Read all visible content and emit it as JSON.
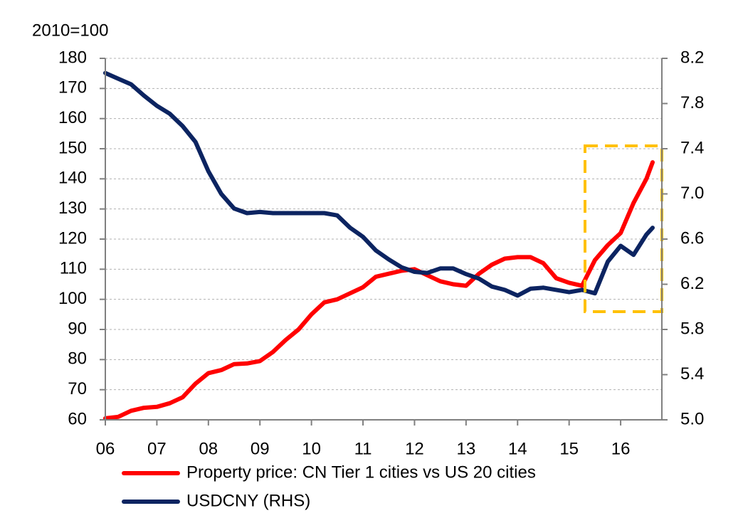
{
  "chart_data": {
    "type": "line",
    "y_axis_label": "2010=100",
    "x": [
      6.0,
      6.25,
      6.5,
      6.75,
      7.0,
      7.25,
      7.5,
      7.75,
      8.0,
      8.25,
      8.5,
      8.75,
      9.0,
      9.25,
      9.5,
      9.75,
      10.0,
      10.25,
      10.5,
      10.75,
      11.0,
      11.25,
      11.5,
      11.75,
      12.0,
      12.25,
      12.5,
      12.75,
      13.0,
      13.25,
      13.5,
      13.75,
      14.0,
      14.25,
      14.5,
      14.75,
      15.0,
      15.25,
      15.5,
      15.75,
      16.0,
      16.25,
      16.5,
      16.62
    ],
    "series": [
      {
        "name": "Property price: CN Tier 1 cities vs US 20 cities",
        "color": "#ff0000",
        "axis": "y",
        "values": [
          60.5,
          61,
          63,
          64,
          64.3,
          65.5,
          67.5,
          72,
          75.5,
          76.5,
          78.5,
          78.7,
          79.5,
          82.5,
          86.5,
          90,
          95,
          99,
          100,
          102,
          104,
          107.5,
          108.5,
          109.5,
          110,
          108,
          106,
          105,
          104.5,
          108.5,
          111.5,
          113.5,
          114,
          114,
          112,
          107,
          105.5,
          104.5,
          113,
          118,
          122,
          132,
          140,
          145.5
        ]
      },
      {
        "name": "USDCNY (RHS)",
        "color": "#0c2461",
        "axis": "y2",
        "values": [
          8.07,
          8.02,
          7.97,
          7.87,
          7.78,
          7.71,
          7.6,
          7.46,
          7.2,
          7.0,
          6.87,
          6.83,
          6.84,
          6.83,
          6.83,
          6.83,
          6.83,
          6.83,
          6.81,
          6.7,
          6.62,
          6.5,
          6.42,
          6.35,
          6.31,
          6.3,
          6.34,
          6.34,
          6.29,
          6.25,
          6.18,
          6.15,
          6.1,
          6.16,
          6.17,
          6.15,
          6.13,
          6.15,
          6.12,
          6.4,
          6.54,
          6.46,
          6.64,
          6.7
        ]
      }
    ],
    "xlim": [
      6,
      16.8
    ],
    "xticks": [
      {
        "value": 6,
        "label": "06"
      },
      {
        "value": 7,
        "label": "07"
      },
      {
        "value": 8,
        "label": "08"
      },
      {
        "value": 9,
        "label": "09"
      },
      10,
      11,
      12,
      13,
      14,
      15,
      16
    ],
    "ylim": [
      60,
      180
    ],
    "yticks": [
      60,
      70,
      80,
      90,
      100,
      110,
      120,
      130,
      140,
      150,
      160,
      170,
      180
    ],
    "y2lim": [
      5.0,
      8.2
    ],
    "y2ticks": [
      {
        "value": 5,
        "label": "5.0"
      },
      5.4,
      5.8,
      6.2,
      6.6,
      {
        "value": 7,
        "label": "7.0"
      },
      7.4,
      7.8,
      8.2
    ],
    "grid": true
  }
}
